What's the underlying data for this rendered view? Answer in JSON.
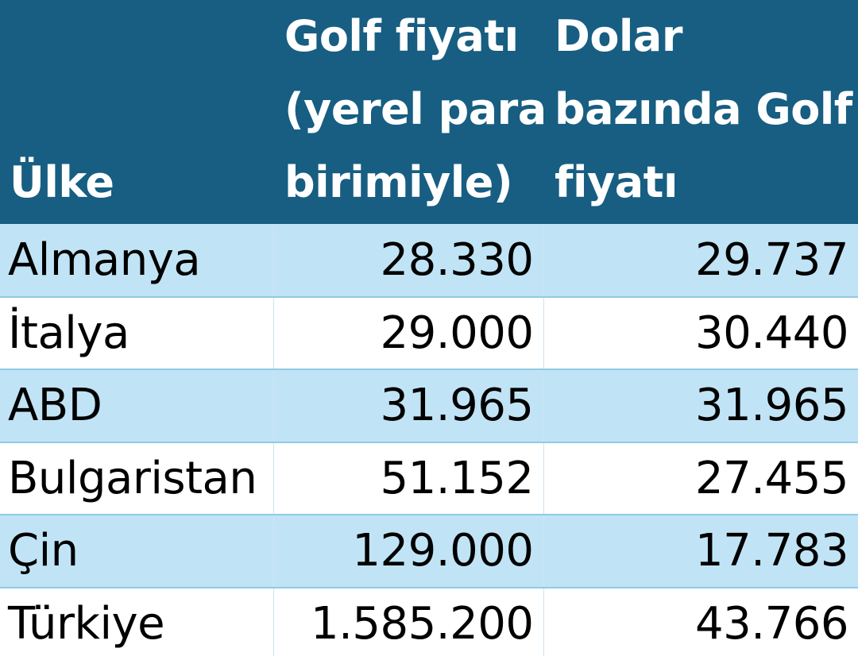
{
  "table": {
    "headers": {
      "country": [
        "Ülke"
      ],
      "local_price": [
        "Golf fiyatı",
        "(yerel para",
        "birimiyle)"
      ],
      "usd_price": [
        "Dolar",
        "bazında Golf",
        "fiyatı"
      ]
    },
    "rows": [
      {
        "country": "Almanya",
        "local_price": "28.330",
        "usd_price": "29.737"
      },
      {
        "country": "İtalya",
        "local_price": "29.000",
        "usd_price": "30.440"
      },
      {
        "country": "ABD",
        "local_price": "31.965",
        "usd_price": "31.965"
      },
      {
        "country": "Bulgaristan",
        "local_price": "51.152",
        "usd_price": "27.455"
      },
      {
        "country": "Çin",
        "local_price": "129.000",
        "usd_price": "17.783"
      },
      {
        "country": "Türkiye",
        "local_price": "1.585.200",
        "usd_price": "43.766"
      }
    ]
  },
  "colors": {
    "header_bg": "#175e82",
    "header_text": "#ffffff",
    "band_row_bg": "#c0e4f5",
    "plain_row_bg": "#ffffff",
    "row_border": "#8fcbe6"
  }
}
